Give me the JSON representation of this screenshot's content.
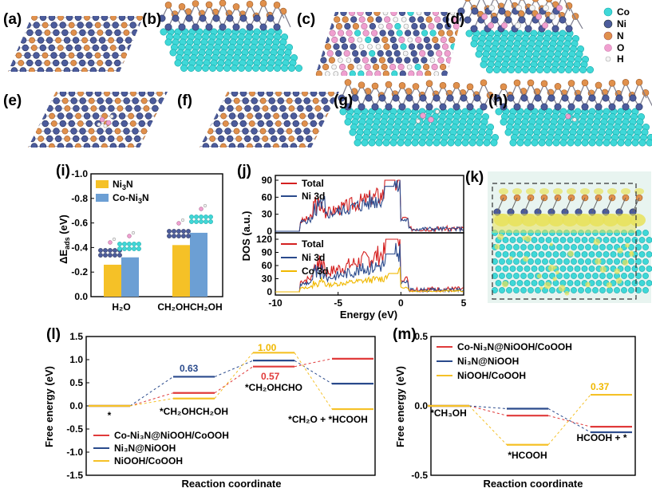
{
  "panel_labels": [
    "(a)",
    "(b)",
    "(c)",
    "(d)",
    "(e)",
    "(f)",
    "(g)",
    "(h)",
    "(i)",
    "(j)",
    "(k)",
    "(l)",
    "(m)"
  ],
  "element_legend": [
    {
      "symbol": "Co",
      "color": "#3fd8d8"
    },
    {
      "symbol": "Ni",
      "color": "#4c5c9c"
    },
    {
      "symbol": "N",
      "color": "#e0904c"
    },
    {
      "symbol": "O",
      "color": "#f0a0d0"
    },
    {
      "symbol": "H",
      "color": "#f4f4f4"
    }
  ],
  "chart_data": [
    {
      "id": "i",
      "type": "bar",
      "ylabel_main": "ΔE",
      "ylabel_sub": "ads",
      "ylabel_unit": " (eV)",
      "ylim": [
        0,
        -1.0
      ],
      "yticks": [
        "-1.0",
        "-0.8",
        "-0.6",
        "-0.4",
        "-0.2",
        "0.0"
      ],
      "categories": [
        "H2O",
        "CH2OHCH2OH"
      ],
      "category_labels": [
        "H₂O",
        "CH₂OHCH₂OH"
      ],
      "series": [
        {
          "name": "Ni3N",
          "label_main": "Ni",
          "label_sub": "3",
          "label_tail": "N",
          "color": "#f5c127",
          "values": [
            -0.26,
            -0.42
          ]
        },
        {
          "name": "Co-Ni3N",
          "label_main": "Co-Ni",
          "label_sub": "3",
          "label_tail": "N",
          "color": "#6c9fd4",
          "values": [
            -0.32,
            -0.52
          ]
        }
      ]
    },
    {
      "id": "j",
      "type": "line",
      "ylabel": "DOS (a.u.)",
      "xlabel": "Energy (eV)",
      "xlim": [
        -10,
        5
      ],
      "xticks": [
        "-10",
        "-5",
        "0",
        "5"
      ],
      "top": {
        "ylim": [
          0,
          90
        ],
        "yticks": [
          "0",
          "30",
          "60",
          "90"
        ],
        "legend": [
          {
            "name": "Total",
            "color": "#d42020"
          },
          {
            "name": "Ni 3d",
            "color": "#2a4a8c"
          }
        ]
      },
      "bottom": {
        "ylim": [
          0,
          120
        ],
        "yticks": [
          "0",
          "30",
          "60",
          "90",
          "120"
        ],
        "legend": [
          {
            "name": "Total",
            "color": "#d42020"
          },
          {
            "name": "Ni 3d",
            "color": "#2a4a8c"
          },
          {
            "name": "Co 3d",
            "color": "#f0b800"
          }
        ]
      }
    },
    {
      "id": "l",
      "type": "line",
      "ylabel": "Free energy (eV)",
      "xlabel": "Reaction coordinate",
      "ylim": [
        -1.5,
        1.5
      ],
      "yticks": [
        "1.5",
        "1.0",
        "0.5",
        "0.0",
        "-0.5",
        "-1.0",
        "-1.5"
      ],
      "states": [
        "*",
        "*CH2OHCH2OH",
        "*CH2OHCHO",
        "*CH2O + *HCOOH"
      ],
      "state_labels": [
        "*",
        "*CH₂OHCH₂OH",
        "*CH₂OHCHO",
        "*CH₂O + *HCOOH"
      ],
      "series": [
        {
          "name": "Co-Ni3N@NiOOH/CoOOH",
          "label": "Co-Ni₃N@NiOOH/CoOOH",
          "color": "#e03a3a",
          "values": [
            0.0,
            0.28,
            0.85,
            1.02
          ]
        },
        {
          "name": "Ni3N@NiOOH",
          "label": "Ni₃N@NiOOH",
          "color": "#2a4a8c",
          "values": [
            0.0,
            0.63,
            0.98,
            0.48
          ]
        },
        {
          "name": "NiOOH/CoOOH",
          "label": "NiOOH/CoOOH",
          "color": "#f5c127",
          "values": [
            0.0,
            0.16,
            1.15,
            -0.07
          ]
        }
      ],
      "annotations": [
        "0.63",
        "1.00",
        "0.57"
      ]
    },
    {
      "id": "m",
      "type": "line",
      "ylabel": "Free energy (eV)",
      "xlabel": "Reaction coordinate",
      "ylim": [
        -0.5,
        0.5
      ],
      "yticks": [
        "0.5",
        "0.0",
        "-0.5"
      ],
      "states": [
        "*CH3OH",
        "*HCOOH",
        "HCOOH + *"
      ],
      "state_labels": [
        "*CH₃OH",
        "*HCOOH",
        "HCOOH + *"
      ],
      "series": [
        {
          "name": "Co-Ni3N@NiOOH/CoOOH",
          "label": "Co-Ni₃N@NiOOH/CoOOH",
          "color": "#e03a3a",
          "values": [
            0.0,
            -0.07,
            -0.15
          ]
        },
        {
          "name": "Ni3N@NiOOH",
          "label": "Ni₃N@NiOOH",
          "color": "#2a4a8c",
          "values": [
            0.0,
            -0.02,
            -0.19
          ]
        },
        {
          "name": "NiOOH/CoOOH",
          "label": "NiOOH/CoOOH",
          "color": "#f5c127",
          "values": [
            0.0,
            -0.28,
            0.08
          ]
        }
      ],
      "annotations": [
        "0.37"
      ]
    }
  ]
}
